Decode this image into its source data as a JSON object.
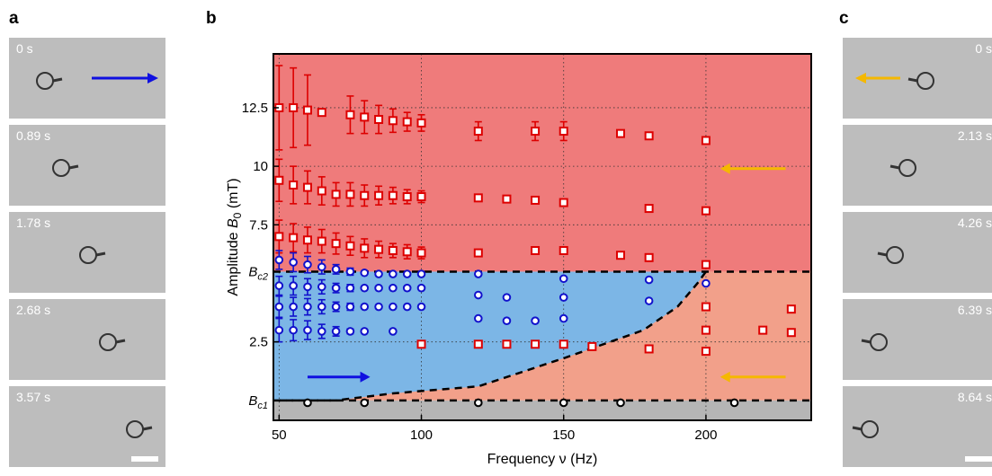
{
  "panels": {
    "a": "a",
    "b": "b",
    "c": "c"
  },
  "panel_a": {
    "frames": [
      {
        "time": "0 s",
        "particle_x": 40,
        "arrow": true
      },
      {
        "time": "0.89 s",
        "particle_x": 58,
        "arrow": false
      },
      {
        "time": "1.78 s",
        "particle_x": 88,
        "arrow": false
      },
      {
        "time": "2.68 s",
        "particle_x": 110,
        "arrow": false
      },
      {
        "time": "3.57 s",
        "particle_x": 140,
        "arrow": false
      }
    ],
    "arrow_color": "#1010e0"
  },
  "panel_c": {
    "frames": [
      {
        "time": "0 s",
        "particle_x": 92,
        "arrow": true
      },
      {
        "time": "2.13 s",
        "particle_x": 72,
        "arrow": false
      },
      {
        "time": "4.26 s",
        "particle_x": 58,
        "arrow": false
      },
      {
        "time": "6.39 s",
        "particle_x": 40,
        "arrow": false
      },
      {
        "time": "8.64 s",
        "particle_x": 30,
        "arrow": false
      }
    ],
    "arrow_color": "#f5b800"
  },
  "chart_data": {
    "type": "scatter",
    "xlabel": "Frequency ν (Hz)",
    "ylabel": "Amplitude B0 (mT)",
    "xlim": [
      48,
      237
    ],
    "ylim": [
      -0.85,
      14.8
    ],
    "x_ticks": [
      50,
      100,
      150,
      200
    ],
    "y_ticks": [
      {
        "value": 2.5,
        "label": "2.5"
      },
      {
        "value": 5.5,
        "label": "Bc2"
      },
      {
        "value": 7.5,
        "label": "7.5"
      },
      {
        "value": 10,
        "label": "10"
      },
      {
        "value": 12.5,
        "label": "12.5"
      },
      {
        "value": 0,
        "label": "Bc1"
      }
    ],
    "thresholds": {
      "Bc1": 0,
      "Bc2": 5.5
    },
    "grid": true,
    "regions": {
      "upper_color": "#ef7b7b",
      "blue_color": "#7cb6e6",
      "lower_color": "#f2a08a",
      "base_color": "#b5b5b5",
      "boundary": [
        [
          50,
          0
        ],
        [
          70,
          0
        ],
        [
          90,
          0.3
        ],
        [
          120,
          0.6
        ],
        [
          150,
          1.8
        ],
        [
          178,
          3.0
        ],
        [
          190,
          4.0
        ],
        [
          197,
          5.0
        ],
        [
          200,
          5.5
        ]
      ]
    },
    "series": [
      {
        "marker": "square",
        "color": "#dd0000",
        "points": [
          [
            50,
            12.5,
            1.8
          ],
          [
            55,
            12.5,
            1.7
          ],
          [
            60,
            12.4,
            1.5
          ],
          [
            65,
            12.3,
            0
          ],
          [
            75,
            12.2,
            0.8
          ],
          [
            80,
            12.1,
            0.7
          ],
          [
            85,
            12.0,
            0.6
          ],
          [
            90,
            11.95,
            0.5
          ],
          [
            95,
            11.9,
            0.4
          ],
          [
            100,
            11.85,
            0.35
          ],
          [
            120,
            11.5,
            0.4
          ],
          [
            140,
            11.5,
            0.4
          ],
          [
            150,
            11.5,
            0.4
          ],
          [
            170,
            11.4,
            0
          ],
          [
            180,
            11.3,
            0
          ],
          [
            200,
            11.1,
            0
          ],
          [
            50,
            9.4,
            0.9
          ],
          [
            55,
            9.2,
            0.8
          ],
          [
            60,
            9.1,
            0.7
          ],
          [
            65,
            8.95,
            0.6
          ],
          [
            70,
            8.8,
            0.5
          ],
          [
            75,
            8.8,
            0.5
          ],
          [
            80,
            8.75,
            0.45
          ],
          [
            85,
            8.75,
            0.4
          ],
          [
            90,
            8.75,
            0.35
          ],
          [
            95,
            8.7,
            0.3
          ],
          [
            100,
            8.7,
            0.25
          ],
          [
            120,
            8.65,
            0
          ],
          [
            130,
            8.6,
            0
          ],
          [
            140,
            8.55,
            0
          ],
          [
            150,
            8.45,
            0
          ],
          [
            180,
            8.2,
            0
          ],
          [
            200,
            8.1,
            0
          ],
          [
            50,
            7.0,
            0.7
          ],
          [
            55,
            6.95,
            0.6
          ],
          [
            60,
            6.85,
            0.55
          ],
          [
            65,
            6.8,
            0.5
          ],
          [
            70,
            6.7,
            0.45
          ],
          [
            75,
            6.6,
            0.4
          ],
          [
            80,
            6.5,
            0.4
          ],
          [
            85,
            6.45,
            0.35
          ],
          [
            90,
            6.4,
            0.3
          ],
          [
            95,
            6.35,
            0.3
          ],
          [
            100,
            6.3,
            0.25
          ],
          [
            120,
            6.3,
            0
          ],
          [
            140,
            6.4,
            0
          ],
          [
            150,
            6.4,
            0
          ],
          [
            170,
            6.2,
            0
          ],
          [
            180,
            6.1,
            0
          ],
          [
            200,
            5.8,
            0
          ],
          [
            100,
            2.4,
            0
          ],
          [
            120,
            2.4,
            0
          ],
          [
            130,
            2.4,
            0
          ],
          [
            140,
            2.4,
            0
          ],
          [
            150,
            2.4,
            0
          ],
          [
            160,
            2.3,
            0
          ],
          [
            180,
            2.2,
            0
          ],
          [
            200,
            2.1,
            0
          ],
          [
            200,
            4.0,
            0
          ],
          [
            200,
            3.0,
            0
          ],
          [
            220,
            3.0,
            0
          ],
          [
            230,
            2.9,
            0
          ],
          [
            230,
            3.9,
            0
          ]
        ]
      },
      {
        "marker": "circle",
        "color": "#1111cc",
        "points": [
          [
            50,
            6.0,
            0.4
          ],
          [
            55,
            5.9,
            0.4
          ],
          [
            60,
            5.8,
            0.35
          ],
          [
            65,
            5.7,
            0.3
          ],
          [
            70,
            5.6,
            0.2
          ],
          [
            75,
            5.5,
            0.15
          ],
          [
            80,
            5.45,
            0
          ],
          [
            85,
            5.4,
            0
          ],
          [
            90,
            5.4,
            0
          ],
          [
            95,
            5.4,
            0
          ],
          [
            100,
            5.4,
            0
          ],
          [
            50,
            4.9,
            0.4
          ],
          [
            55,
            4.9,
            0.4
          ],
          [
            60,
            4.85,
            0.35
          ],
          [
            65,
            4.85,
            0.3
          ],
          [
            70,
            4.8,
            0.2
          ],
          [
            75,
            4.8,
            0.15
          ],
          [
            80,
            4.8,
            0
          ],
          [
            85,
            4.8,
            0
          ],
          [
            90,
            4.8,
            0
          ],
          [
            95,
            4.8,
            0
          ],
          [
            100,
            4.8,
            0
          ],
          [
            50,
            4.0,
            0.45
          ],
          [
            55,
            4.0,
            0.4
          ],
          [
            60,
            4.0,
            0.35
          ],
          [
            65,
            4.0,
            0.3
          ],
          [
            70,
            4.0,
            0.2
          ],
          [
            75,
            4.0,
            0.15
          ],
          [
            80,
            4.0,
            0
          ],
          [
            85,
            4.0,
            0
          ],
          [
            90,
            4.0,
            0
          ],
          [
            95,
            4.0,
            0
          ],
          [
            100,
            4.0,
            0
          ],
          [
            50,
            3.0,
            0.5
          ],
          [
            55,
            3.0,
            0.45
          ],
          [
            60,
            3.0,
            0.4
          ],
          [
            65,
            2.95,
            0.3
          ],
          [
            70,
            2.95,
            0.2
          ],
          [
            75,
            2.95,
            0.1
          ],
          [
            80,
            2.95,
            0
          ],
          [
            90,
            2.95,
            0
          ],
          [
            120,
            5.4,
            0
          ],
          [
            150,
            5.2,
            0
          ],
          [
            180,
            5.15,
            0
          ],
          [
            200,
            5.0,
            0
          ],
          [
            120,
            4.5,
            0
          ],
          [
            130,
            4.4,
            0
          ],
          [
            150,
            4.4,
            0
          ],
          [
            180,
            4.25,
            0
          ],
          [
            120,
            3.5,
            0
          ],
          [
            130,
            3.4,
            0
          ],
          [
            140,
            3.4,
            0
          ],
          [
            150,
            3.5,
            0
          ],
          [
            60,
            -0.1,
            0
          ],
          [
            80,
            -0.1,
            0
          ],
          [
            120,
            -0.1,
            0
          ],
          [
            150,
            -0.1,
            0
          ],
          [
            170,
            -0.1,
            0
          ],
          [
            210,
            -0.1,
            0
          ]
        ]
      }
    ],
    "arrows": [
      {
        "from": [
          60,
          1.0
        ],
        "to": [
          82,
          1.0
        ],
        "color": "#1010e0"
      },
      {
        "from": [
          228,
          9.9
        ],
        "to": [
          205,
          9.9
        ],
        "color": "#f5b800"
      },
      {
        "from": [
          228,
          1.0
        ],
        "to": [
          205,
          1.0
        ],
        "color": "#f5b800"
      }
    ]
  }
}
